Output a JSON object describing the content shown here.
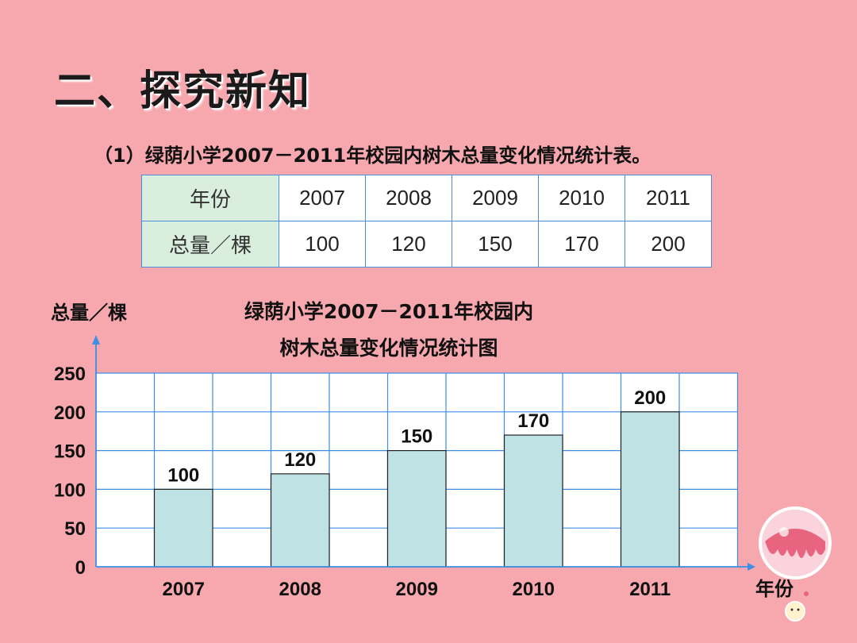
{
  "slide": {
    "title": "二、探究新知",
    "caption": "（1）绿荫小学2007－2011年校园内树木总量变化情况统计表。"
  },
  "table": {
    "row_headers": [
      "年份",
      "总量／棵"
    ],
    "years": [
      "2007",
      "2008",
      "2009",
      "2010",
      "2011"
    ],
    "totals": [
      "100",
      "120",
      "150",
      "170",
      "200"
    ]
  },
  "chart_data": {
    "type": "bar",
    "title_lines": [
      "绿荫小学2007－2011年校园内",
      "树木总量变化情况统计图"
    ],
    "ylabel": "总量／棵",
    "xlabel": "年份",
    "categories": [
      "2007",
      "2008",
      "2009",
      "2010",
      "2011"
    ],
    "values": [
      100,
      120,
      150,
      170,
      200
    ],
    "ylim": [
      0,
      250
    ],
    "yticks": [
      0,
      50,
      100,
      150,
      200,
      250
    ],
    "grid": true,
    "bar_color": "#bfe3e4",
    "grid_color": "#3d8ee6"
  }
}
